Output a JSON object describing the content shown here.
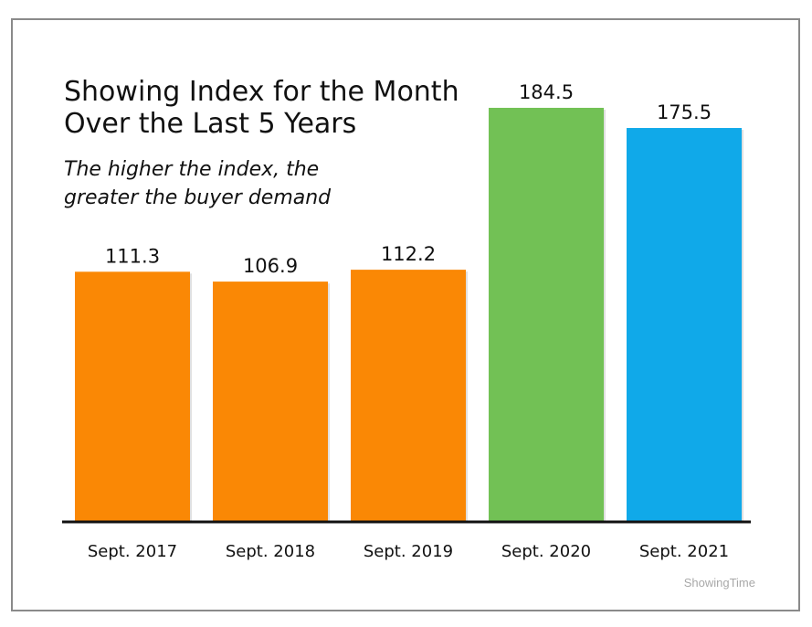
{
  "chart_data": {
    "type": "bar",
    "title_lines": [
      "Showing Index for the Month",
      "Over the Last 5 Years"
    ],
    "subtitle_lines": [
      "The higher the index, the",
      "greater the buyer demand"
    ],
    "categories": [
      "Sept. 2017",
      "Sept. 2018",
      "Sept. 2019",
      "Sept. 2020",
      "Sept. 2021"
    ],
    "values": [
      111.3,
      106.9,
      112.2,
      184.5,
      175.5
    ],
    "value_labels": [
      "111.3",
      "106.9",
      "112.2",
      "184.5",
      "175.5"
    ],
    "colors": [
      "#FA8805",
      "#FA8805",
      "#FA8805",
      "#72C155",
      "#10A9E9"
    ],
    "ylim": [
      0,
      200
    ],
    "grid": false,
    "legend": "none",
    "source": "ShowingTime"
  }
}
